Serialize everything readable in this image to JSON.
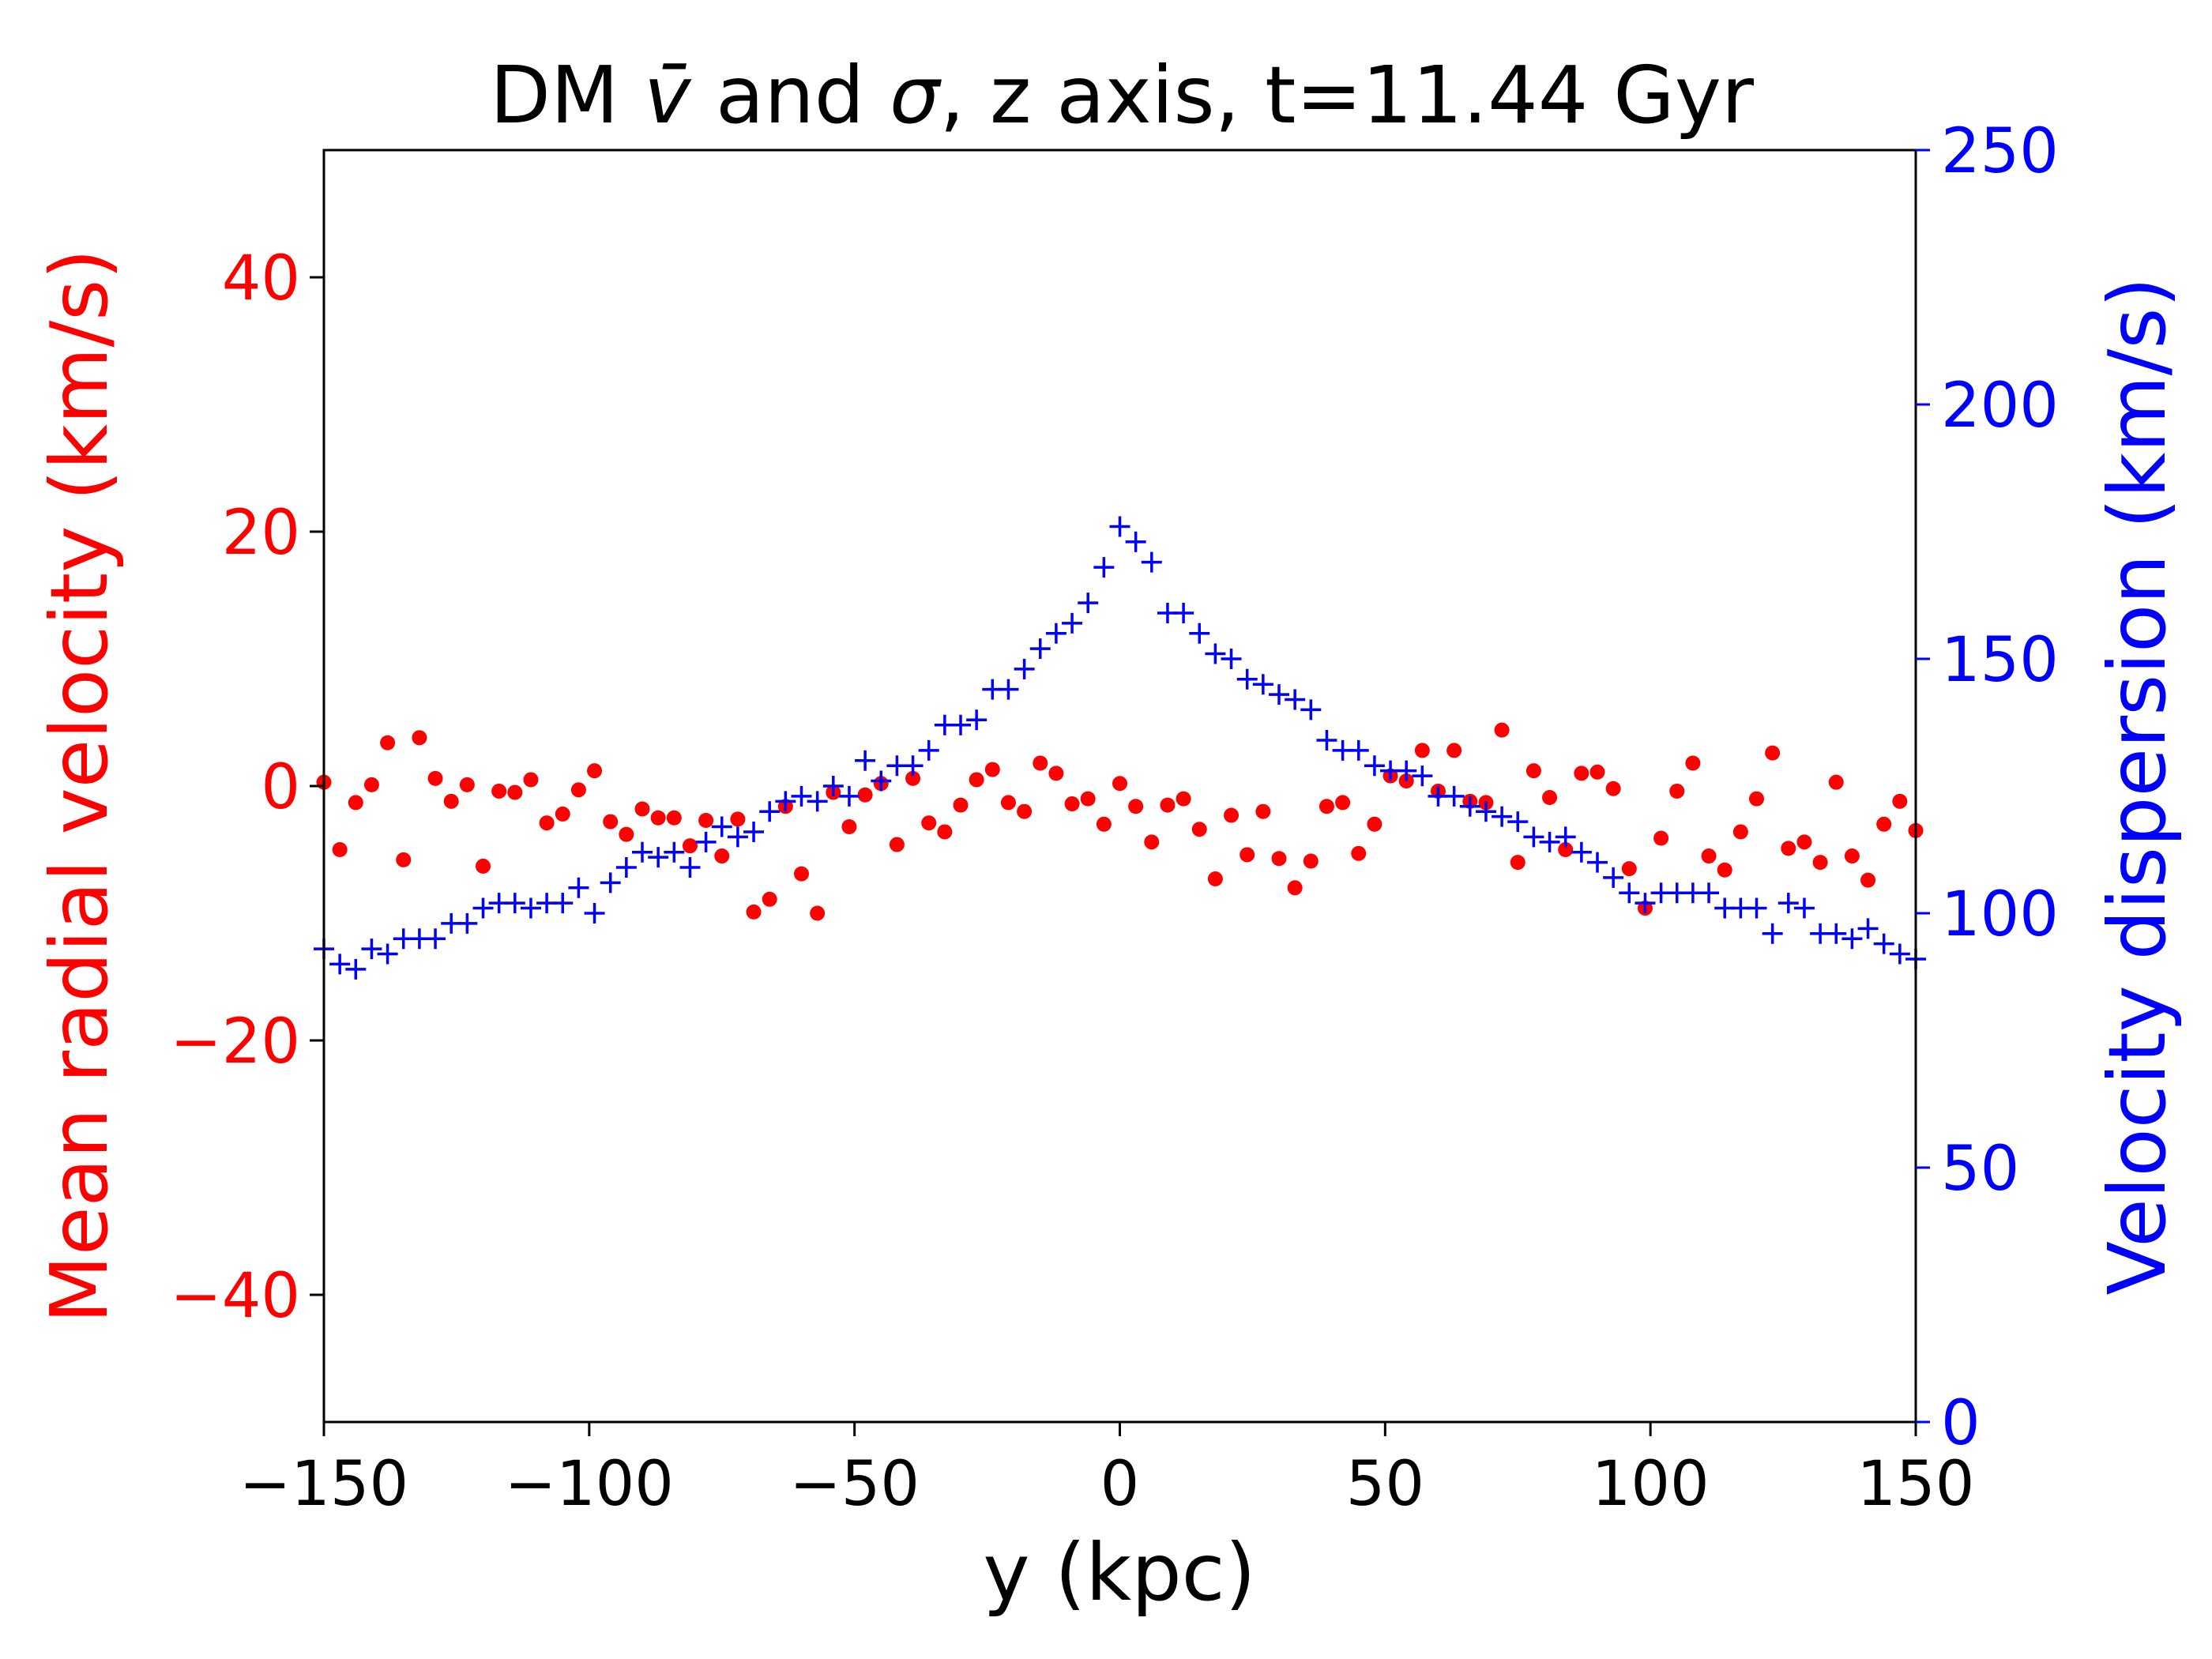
{
  "chart_data": {
    "type": "scatter",
    "title": {
      "prefix": "DM ",
      "vbar_symbol": "v̄",
      "middle": " and ",
      "sigma_symbol": "σ",
      "suffix": ", z axis, t=11.44 Gyr"
    },
    "xlabel": "y (kpc)",
    "ylabel_left": "Mean radial velocity (km/s)",
    "ylabel_right": "Velocity dispersion (km/s)",
    "xlim": [
      -150,
      150
    ],
    "ylim_left": [
      -50,
      50
    ],
    "ylim_right": [
      0,
      250
    ],
    "x_ticks": [
      -150,
      -100,
      -50,
      0,
      50,
      100,
      150
    ],
    "x_tick_labels": [
      "−150",
      "−100",
      "−50",
      "0",
      "50",
      "100",
      "150"
    ],
    "y_left_ticks": [
      -40,
      -20,
      0,
      20,
      40
    ],
    "y_left_tick_labels": [
      "−40",
      "−20",
      "0",
      "20",
      "40"
    ],
    "y_right_ticks": [
      0,
      50,
      100,
      150,
      200,
      250
    ],
    "y_right_tick_labels": [
      "0",
      "50",
      "100",
      "150",
      "200",
      "250"
    ],
    "grid": false,
    "colors": {
      "mean": "#ff0000",
      "dispersion": "#0000ff",
      "axes": "#000000"
    },
    "series": [
      {
        "axis": "left",
        "marker": "dot",
        "x": [
          -150,
          -147,
          -144,
          -141,
          -138,
          -135,
          -132,
          -129,
          -126,
          -123,
          -120,
          -117,
          -114,
          -111,
          -108,
          -105,
          -102,
          -99,
          -96,
          -93,
          -90,
          -87,
          -84,
          -81,
          -78,
          -75,
          -72,
          -69,
          -66,
          -63,
          -60,
          -57,
          -54,
          -51,
          -48,
          -45,
          -42,
          -39,
          -36,
          -33,
          -30,
          -27,
          -24,
          -21,
          -18,
          -15,
          -12,
          -9,
          -6,
          -3,
          0,
          3,
          6,
          9,
          12,
          15,
          18,
          21,
          24,
          27,
          30,
          33,
          36,
          39,
          42,
          45,
          48,
          51,
          54,
          57,
          60,
          63,
          66,
          69,
          72,
          75,
          78,
          81,
          84,
          87,
          90,
          93,
          96,
          99,
          102,
          105,
          108,
          111,
          114,
          117,
          120,
          123,
          126,
          129,
          132,
          135,
          138,
          141,
          144,
          147,
          150
        ],
        "y": [
          0.3,
          -5.0,
          -1.3,
          0.1,
          3.4,
          -5.8,
          3.8,
          0.6,
          -1.2,
          0.1,
          -6.3,
          -0.4,
          -0.5,
          0.5,
          -2.9,
          -2.2,
          -0.3,
          1.2,
          -2.8,
          -3.8,
          -1.8,
          -2.5,
          -2.5,
          -4.7,
          -2.7,
          -5.5,
          -2.6,
          -9.9,
          -8.9,
          -1.6,
          -6.9,
          -10.0,
          -0.5,
          -3.2,
          -0.7,
          0.2,
          -4.6,
          0.6,
          -2.9,
          -3.6,
          -1.5,
          0.5,
          1.3,
          -1.3,
          -2.0,
          1.8,
          1.0,
          -1.4,
          -1.0,
          -3.0,
          0.2,
          -1.6,
          -4.4,
          -1.5,
          -1.0,
          -3.4,
          -7.3,
          -2.3,
          -5.4,
          -2.0,
          -5.7,
          -8.0,
          -5.9,
          -1.6,
          -1.3,
          -5.3,
          -3.0,
          0.8,
          0.4,
          2.8,
          -0.4,
          2.8,
          -1.2,
          -1.3,
          4.4,
          -6.0,
          1.2,
          -0.9,
          -5.0,
          1.0,
          1.1,
          -0.2,
          -6.5,
          -9.6,
          -4.1,
          -0.4,
          1.8,
          -5.5,
          -6.6,
          -3.6,
          -1.0,
          2.6,
          -4.9,
          -4.4,
          -6.0,
          0.3,
          -5.5,
          -7.4,
          -3.0,
          -1.2,
          -3.5
        ]
      },
      {
        "axis": "right",
        "marker": "plus",
        "x": [
          -150,
          -147,
          -144,
          -141,
          -138,
          -135,
          -132,
          -129,
          -126,
          -123,
          -120,
          -117,
          -114,
          -111,
          -108,
          -105,
          -102,
          -99,
          -96,
          -93,
          -90,
          -87,
          -84,
          -81,
          -78,
          -75,
          -72,
          -69,
          -66,
          -63,
          -60,
          -57,
          -54,
          -51,
          -48,
          -45,
          -42,
          -39,
          -36,
          -33,
          -30,
          -27,
          -24,
          -21,
          -18,
          -15,
          -12,
          -9,
          -6,
          -3,
          0,
          3,
          6,
          9,
          12,
          15,
          18,
          21,
          24,
          27,
          30,
          33,
          36,
          39,
          42,
          45,
          48,
          51,
          54,
          57,
          60,
          63,
          66,
          69,
          72,
          75,
          78,
          81,
          84,
          87,
          90,
          93,
          96,
          99,
          102,
          105,
          108,
          111,
          114,
          117,
          120,
          123,
          126,
          129,
          132,
          135,
          138,
          141,
          144,
          147,
          150
        ],
        "y": [
          93,
          90,
          89,
          93,
          92,
          95,
          95,
          95,
          98,
          98,
          101,
          102,
          102,
          101,
          102,
          102,
          105,
          100,
          106,
          109,
          112,
          111,
          112,
          109,
          114,
          117,
          115,
          116,
          120,
          122,
          123,
          122,
          125,
          123,
          130,
          126,
          129,
          129,
          132,
          137,
          137,
          138,
          144,
          144,
          148,
          152,
          155,
          157,
          161,
          168,
          176,
          173,
          169,
          159,
          159,
          155,
          151,
          150,
          146,
          145,
          143,
          142,
          140,
          134,
          132,
          132,
          129,
          128,
          128,
          127,
          123,
          123,
          121,
          120,
          119,
          118,
          115,
          114,
          115,
          112,
          110,
          107,
          104,
          102,
          104,
          104,
          104,
          104,
          101,
          101,
          101,
          96,
          102,
          101,
          96,
          96,
          95,
          97,
          94,
          92,
          91
        ]
      }
    ]
  }
}
